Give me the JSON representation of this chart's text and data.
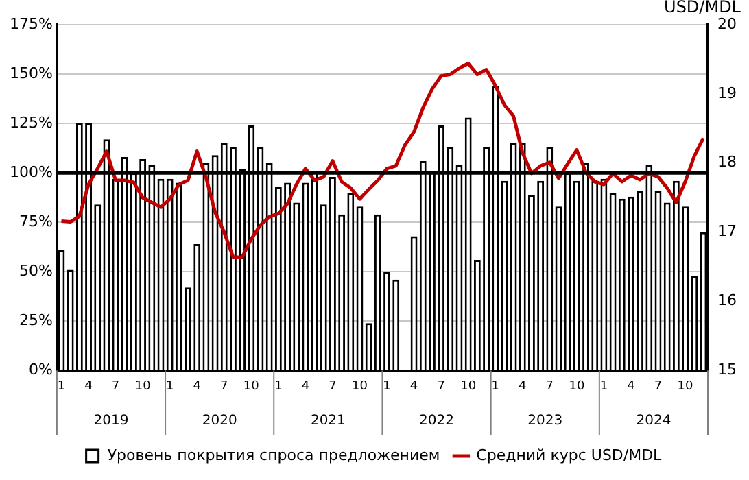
{
  "chart_data": {
    "type": "bar",
    "categories": [
      "1",
      null,
      null,
      "4",
      null,
      null,
      "7",
      null,
      null,
      "10",
      null,
      null,
      "1",
      null,
      null,
      "4",
      null,
      null,
      "7",
      null,
      null,
      "10",
      null,
      null,
      "1",
      null,
      null,
      "4",
      null,
      null,
      "7",
      null,
      null,
      "10",
      null,
      null,
      "1",
      null,
      null,
      "4",
      null,
      null,
      "7",
      null,
      null,
      "10",
      null,
      null,
      "1",
      null,
      null,
      "4",
      null,
      null,
      "7",
      null,
      null,
      "10",
      null,
      null,
      "1",
      null,
      null,
      "4",
      null,
      null,
      "7",
      null,
      null,
      "10",
      null,
      null
    ],
    "series": [
      {
        "name": "Уровень покрытия спроса предложением",
        "color": "#000000",
        "values": [
          61,
          51,
          125,
          125,
          84,
          117,
          97,
          108,
          100,
          107,
          104,
          97,
          97,
          95,
          42,
          64,
          105,
          109,
          115,
          113,
          102,
          124,
          113,
          105,
          93,
          95,
          85,
          95,
          101,
          84,
          98,
          79,
          90,
          83,
          24,
          79,
          50,
          46,
          null,
          68,
          106,
          101,
          124,
          113,
          104,
          128,
          56,
          113,
          144,
          96,
          115,
          115,
          89,
          96,
          113,
          83,
          100,
          96,
          105,
          96,
          97,
          90,
          87,
          88,
          91,
          104,
          91,
          85,
          96,
          83,
          48,
          70
        ]
      },
      {
        "name": "Средний курс USD/MDL",
        "type": "line",
        "axis": "y2",
        "color": "#c00000",
        "values": [
          17.16,
          17.15,
          17.23,
          17.69,
          17.92,
          18.17,
          17.75,
          17.75,
          17.72,
          17.5,
          17.43,
          17.36,
          17.48,
          17.69,
          17.75,
          18.17,
          17.79,
          17.29,
          17.0,
          16.64,
          16.64,
          16.9,
          17.1,
          17.22,
          17.27,
          17.41,
          17.69,
          17.92,
          17.75,
          17.8,
          18.03,
          17.73,
          17.64,
          17.48,
          17.62,
          17.75,
          17.92,
          17.96,
          18.26,
          18.45,
          18.8,
          19.07,
          19.26,
          19.28,
          19.37,
          19.44,
          19.28,
          19.35,
          19.12,
          18.84,
          18.68,
          18.15,
          17.85,
          17.96,
          18.01,
          17.78,
          17.99,
          18.19,
          17.87,
          17.73,
          17.69,
          17.85,
          17.73,
          17.82,
          17.76,
          17.85,
          17.8,
          17.64,
          17.43,
          17.73,
          18.1,
          18.36
        ]
      }
    ],
    "ylim": [
      0,
      175
    ],
    "yticks": [
      {
        "value": 0,
        "label": "0%"
      },
      {
        "value": 25,
        "label": "25%"
      },
      {
        "value": 50,
        "label": "50%"
      },
      {
        "value": 75,
        "label": "75%"
      },
      {
        "value": 100,
        "label": "100%"
      },
      {
        "value": 125,
        "label": "125%"
      },
      {
        "value": 150,
        "label": "150%"
      },
      {
        "value": 175,
        "label": "175%"
      }
    ],
    "y2lim": [
      15,
      20
    ],
    "y2ticks": [
      15,
      16,
      17,
      18,
      19,
      20
    ],
    "y2label": "USD/MDL",
    "ref_lines": [
      {
        "axis": "y",
        "value": 100,
        "color": "#000000"
      }
    ],
    "annotations": [
      "2019",
      "2020",
      "2021",
      "2022",
      "2023",
      "2024"
    ],
    "grid": "y",
    "legend": "bottom"
  }
}
